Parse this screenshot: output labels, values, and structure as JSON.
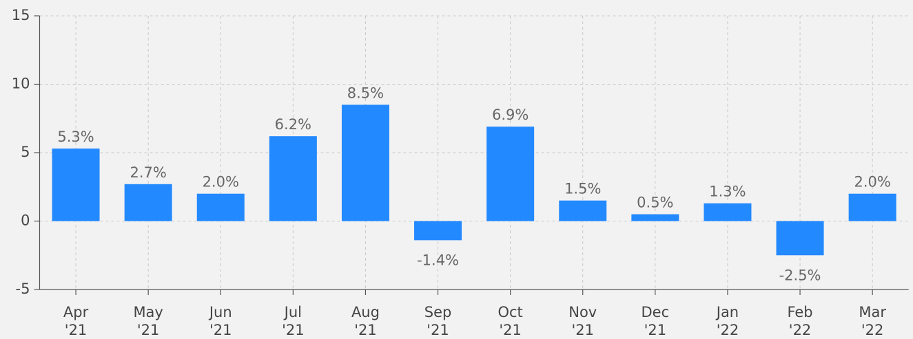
{
  "chart_data": {
    "type": "bar",
    "categories": [
      "Apr '21",
      "May '21",
      "Jun '21",
      "Jul '21",
      "Aug '21",
      "Sep '21",
      "Oct '21",
      "Nov '21",
      "Dec '21",
      "Jan '22",
      "Feb '22",
      "Mar '22"
    ],
    "values": [
      5.3,
      2.7,
      2.0,
      6.2,
      8.5,
      -1.4,
      6.9,
      1.5,
      0.5,
      1.3,
      -2.5,
      2.0
    ],
    "value_labels": [
      "5.3%",
      "2.7%",
      "2.0%",
      "6.2%",
      "8.5%",
      "-1.4%",
      "6.9%",
      "1.5%",
      "0.5%",
      "1.3%",
      "-2.5%",
      "2.0%"
    ],
    "color": "#2389ff",
    "ylim": [
      -5,
      15
    ],
    "yticks": [
      -5,
      0,
      5,
      10,
      15
    ],
    "grid": true
  }
}
